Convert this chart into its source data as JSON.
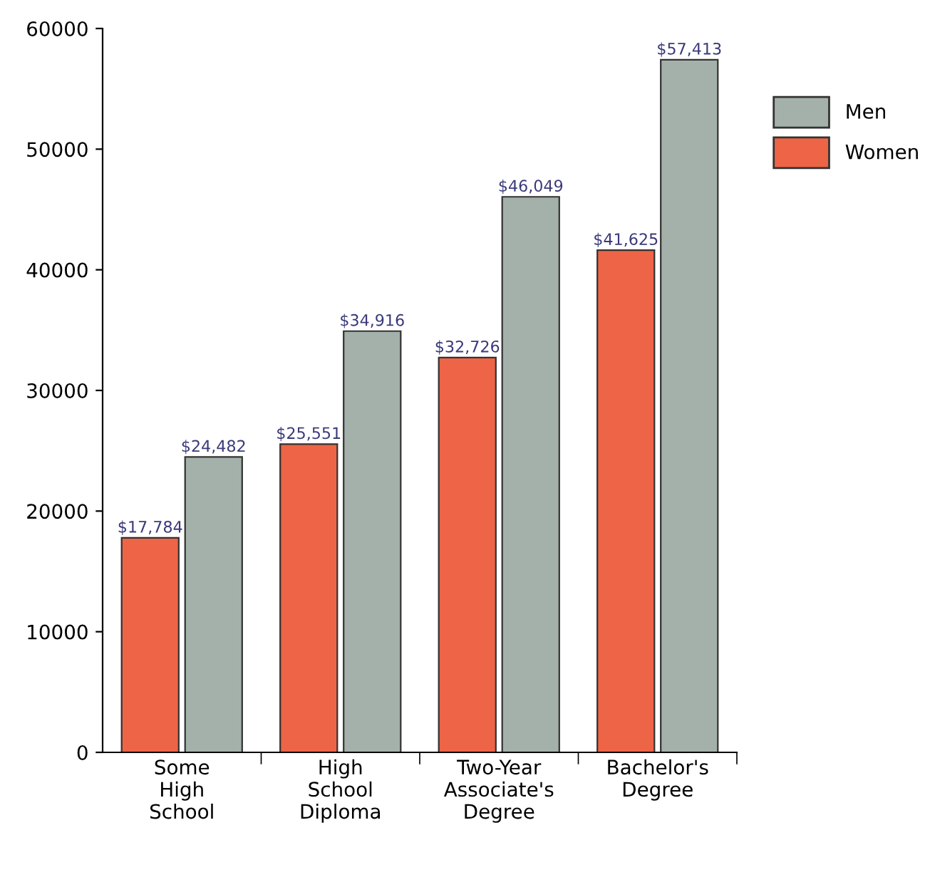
{
  "chart_data": {
    "type": "bar",
    "categories": [
      "Some\nHigh\nSchool",
      "High\nSchool\nDiploma",
      "Two-Year\nAssociate's\nDegree",
      "Bachelor's\nDegree"
    ],
    "series": [
      {
        "name": "Women",
        "color": "#ee6447",
        "values": [
          17784,
          25551,
          32726,
          41625
        ],
        "value_labels": [
          "$17,784",
          "$25,551",
          "$32,726",
          "$41,625"
        ]
      },
      {
        "name": "Men",
        "color": "#a4b1aa",
        "values": [
          24482,
          34916,
          46049,
          57413
        ],
        "value_labels": [
          "$24,482",
          "$34,916",
          "$46,049",
          "$57,413"
        ]
      }
    ],
    "ylim": [
      0,
      60000
    ],
    "yticks": [
      0,
      10000,
      20000,
      30000,
      40000,
      50000,
      60000
    ],
    "grid": false,
    "legend": "top right"
  }
}
